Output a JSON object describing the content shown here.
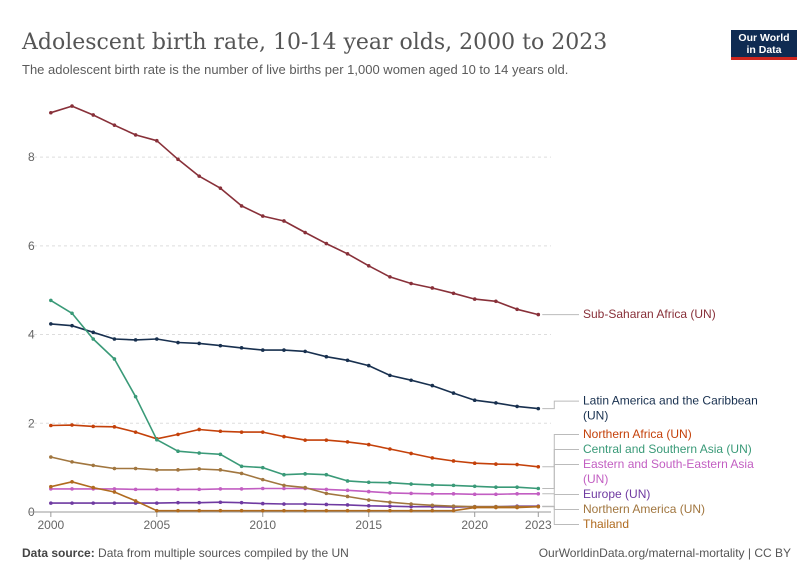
{
  "header": {
    "title": "Adolescent birth rate, 10-14 year olds, 2000 to 2023",
    "subtitle": "The adolescent birth rate is the number of live births per 1,000 women aged 10 to 14 years old."
  },
  "logo": {
    "line1": "Our World",
    "line2": "in Data"
  },
  "footer": {
    "source_label": "Data source:",
    "source_text": "Data from multiple sources compiled by the UN",
    "credit": "OurWorldinData.org/maternal-mortality | CC BY"
  },
  "chart_data": {
    "type": "line",
    "x": [
      2000,
      2001,
      2002,
      2003,
      2004,
      2005,
      2006,
      2007,
      2008,
      2009,
      2010,
      2011,
      2012,
      2013,
      2014,
      2015,
      2016,
      2017,
      2018,
      2019,
      2020,
      2021,
      2022,
      2023
    ],
    "xlim": [
      1999.3,
      2023.6
    ],
    "ylim": [
      0,
      9.4
    ],
    "x_ticks": [
      2000,
      2005,
      2010,
      2015,
      2020,
      2023
    ],
    "y_ticks": [
      0,
      2,
      4,
      6,
      8
    ],
    "grid": true,
    "legend": "right-end labels",
    "series": [
      {
        "name": "Sub-Saharan Africa (UN)",
        "color": "#883039",
        "values": [
          9.0,
          9.15,
          8.95,
          8.72,
          8.5,
          8.37,
          7.95,
          7.57,
          7.3,
          6.9,
          6.67,
          6.56,
          6.3,
          6.05,
          5.82,
          5.55,
          5.3,
          5.15,
          5.05,
          4.93,
          4.8,
          4.75,
          4.57,
          4.45
        ]
      },
      {
        "name": "Latin America and the Caribbean (UN)",
        "color": "#18304f",
        "values": [
          4.24,
          4.2,
          4.05,
          3.9,
          3.88,
          3.9,
          3.82,
          3.8,
          3.75,
          3.7,
          3.65,
          3.65,
          3.62,
          3.5,
          3.42,
          3.3,
          3.08,
          2.97,
          2.85,
          2.68,
          2.52,
          2.46,
          2.38,
          2.33
        ]
      },
      {
        "name": "Northern Africa (UN)",
        "color": "#c4410a",
        "values": [
          1.95,
          1.96,
          1.93,
          1.92,
          1.8,
          1.65,
          1.75,
          1.86,
          1.82,
          1.8,
          1.8,
          1.7,
          1.62,
          1.62,
          1.58,
          1.52,
          1.42,
          1.32,
          1.22,
          1.15,
          1.1,
          1.08,
          1.07,
          1.02
        ]
      },
      {
        "name": "Central and Southern Asia (UN)",
        "color": "#3a9a78",
        "values": [
          4.77,
          4.48,
          3.9,
          3.45,
          2.6,
          1.63,
          1.37,
          1.33,
          1.3,
          1.03,
          1.0,
          0.84,
          0.86,
          0.84,
          0.7,
          0.67,
          0.66,
          0.63,
          0.61,
          0.6,
          0.58,
          0.56,
          0.56,
          0.53
        ]
      },
      {
        "name": "Eastern and South-Eastern Asia (UN)",
        "color": "#c25ec2",
        "values": [
          0.52,
          0.52,
          0.52,
          0.52,
          0.51,
          0.51,
          0.51,
          0.51,
          0.52,
          0.52,
          0.53,
          0.53,
          0.53,
          0.51,
          0.49,
          0.46,
          0.43,
          0.42,
          0.41,
          0.41,
          0.4,
          0.4,
          0.41,
          0.41
        ]
      },
      {
        "name": "Europe (UN)",
        "color": "#6f3aa1",
        "values": [
          0.2,
          0.2,
          0.2,
          0.2,
          0.2,
          0.2,
          0.21,
          0.21,
          0.22,
          0.21,
          0.19,
          0.18,
          0.18,
          0.17,
          0.16,
          0.14,
          0.13,
          0.12,
          0.12,
          0.11,
          0.12,
          0.12,
          0.13,
          0.13
        ]
      },
      {
        "name": "Northern America (UN)",
        "color": "#a1763f",
        "values": [
          1.24,
          1.13,
          1.05,
          0.98,
          0.98,
          0.95,
          0.95,
          0.97,
          0.95,
          0.87,
          0.73,
          0.6,
          0.55,
          0.42,
          0.35,
          0.27,
          0.22,
          0.18,
          0.15,
          0.13,
          0.12,
          0.12,
          0.12,
          0.12
        ]
      },
      {
        "name": "Thailand",
        "color": "#b06b1f",
        "values": [
          0.57,
          0.68,
          0.55,
          0.45,
          0.25,
          0.03,
          0.03,
          0.03,
          0.03,
          0.03,
          0.03,
          0.03,
          0.03,
          0.03,
          0.03,
          0.03,
          0.03,
          0.03,
          0.03,
          0.03,
          0.1,
          0.1,
          0.1,
          0.12
        ]
      }
    ]
  }
}
